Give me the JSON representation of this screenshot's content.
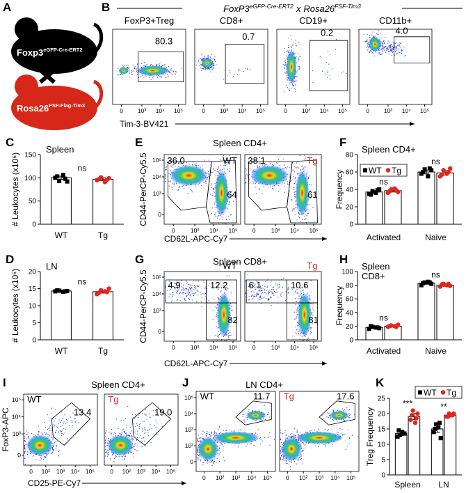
{
  "panel_a": {
    "label": "A",
    "mouse1": {
      "gene": "Foxp3",
      "allele": "eGFP-Cre-ERT2"
    },
    "mouse2": {
      "gene": "Rosa26",
      "allele": "FSF-Flag-Tim3"
    }
  },
  "panel_b": {
    "label": "B",
    "title": {
      "gene1": "FoxP3",
      "sup1": "eGFP-Cre-ERT2",
      "joiner": "x",
      "gene2": "Rosa26",
      "sup2": "FSF-Tim3"
    },
    "plots": [
      {
        "title": "FoxP3+Treg",
        "gate": "80.3"
      },
      {
        "title": "CD8+",
        "gate": "0.7"
      },
      {
        "title": "CD19+",
        "gate": "0.2"
      },
      {
        "title": "CD11b+",
        "gate": "4.0"
      }
    ],
    "xticks": [
      "0",
      "10³",
      "10⁴",
      "10⁵"
    ],
    "xlabel": "Tim-3-BV421"
  },
  "panel_e": {
    "label": "E",
    "title": "Spleen CD4+",
    "ylabel": "CD44-PerCP-Cy5.5",
    "xlabel": "CD62L-APC-Cy7",
    "yticks": [
      "10⁵",
      "10⁴",
      "10³",
      "0"
    ],
    "xticks": [
      "0",
      "10³",
      "10⁴",
      "10⁵"
    ],
    "plots": [
      {
        "group": "WT",
        "color": "#000000",
        "gates": [
          "36.0",
          "64"
        ]
      },
      {
        "group": "Tg",
        "color": "#d62718",
        "gates": [
          "38.1",
          "61"
        ]
      }
    ]
  },
  "panel_g": {
    "label": "G",
    "title": "Spleen CD8+",
    "ylabel": "CD44-PerCP-Cy5.5",
    "xlabel": "CD62L-APC-Cy7",
    "yticks": [
      "10⁵",
      "10⁴",
      "10³",
      "0"
    ],
    "xticks": [
      "0",
      "10³",
      "10⁴",
      "10⁵"
    ],
    "plots": [
      {
        "group": "WT",
        "color": "#000000",
        "gates": [
          "4.9",
          "12.2",
          "82"
        ]
      },
      {
        "group": "Tg",
        "color": "#d62718",
        "gates": [
          "6.1",
          "10.6",
          "81"
        ]
      }
    ]
  },
  "panel_i": {
    "label": "I",
    "title": "Spleen CD4+",
    "ylabel": "FoxP3-APC",
    "xlabel": "CD25-PE-Cy7",
    "yticks": [
      "10⁵",
      "10⁴",
      "10³",
      "0"
    ],
    "xticks": [
      "0",
      "10²",
      "10³",
      "10⁴",
      "10⁵"
    ],
    "plots": [
      {
        "group": "WT",
        "color": "#000000",
        "gates": [
          "13.4"
        ]
      },
      {
        "group": "Tg",
        "color": "#d62718",
        "gates": [
          "19.0"
        ]
      }
    ]
  },
  "panel_j": {
    "label": "J",
    "title": "LN CD4+",
    "yticks": [
      "10⁵",
      "10⁴",
      "10³",
      "10²",
      "0"
    ],
    "xticks": [
      "0",
      "10²",
      "10³",
      "10⁴",
      "10⁵"
    ],
    "plots": [
      {
        "group": "WT",
        "color": "#000000",
        "gates": [
          "11.7"
        ]
      },
      {
        "group": "Tg",
        "color": "#d62718",
        "gates": [
          "17.6"
        ]
      }
    ]
  },
  "chart_data": [
    {
      "type": "bar",
      "label": "C",
      "title": [
        "Spleen"
      ],
      "ylabel": "# Leukocytes (x10⁶)",
      "categories": [
        "WT",
        "Tg"
      ],
      "values": [
        100,
        97
      ],
      "errors": [
        3.5,
        3
      ],
      "points": [
        [
          100,
          93,
          106,
          92,
          103,
          98
        ],
        [
          95,
          101,
          91,
          99,
          97,
          96
        ]
      ],
      "markers": [
        "square",
        "circle"
      ],
      "marker_colors": [
        "#000000",
        "#e8231c"
      ],
      "annotation": "ns",
      "ylim": [
        0,
        150
      ],
      "yticks": [
        0,
        50,
        100,
        150
      ]
    },
    {
      "type": "bar",
      "label": "D",
      "title": [
        "LN"
      ],
      "ylabel": "# Leukocytes (x10⁶)",
      "categories": [
        "WT",
        "Tg"
      ],
      "values": [
        14.3,
        14.1
      ],
      "errors": [
        0.15,
        0.4
      ],
      "points": [
        [
          14.2,
          14.4,
          14.1,
          14.3,
          14.5,
          14.2
        ],
        [
          13.4,
          14.5,
          14.2,
          15.0,
          13.8,
          14.0
        ]
      ],
      "markers": [
        "square",
        "circle"
      ],
      "marker_colors": [
        "#000000",
        "#e8231c"
      ],
      "annotation": "ns",
      "ylim": [
        0,
        20
      ],
      "yticks": [
        0,
        5,
        10,
        15,
        20
      ]
    },
    {
      "type": "bar",
      "label": "F",
      "title": [
        "Spleen CD4+"
      ],
      "ylabel": "Frequency",
      "categories": [
        "Activated",
        "Naive"
      ],
      "series": [
        {
          "name": "WT",
          "color": "#000000",
          "marker": "square",
          "values": [
            37,
            60
          ],
          "errors": [
            1.5,
            2.2
          ],
          "points": [
            [
              35,
              38,
              36,
              40,
              34,
              39
            ],
            [
              58,
              63,
              55,
              62,
              60,
              64
            ]
          ]
        },
        {
          "name": "Tg",
          "color": "#e8231c",
          "marker": "circle",
          "values": [
            38.5,
            59
          ],
          "errors": [
            1.5,
            2.5
          ],
          "points": [
            [
              36,
              40,
              41,
              37,
              38,
              39
            ],
            [
              55,
              62,
              58,
              64,
              57,
              60
            ]
          ]
        }
      ],
      "annotations": [
        "ns",
        "ns"
      ],
      "legend": true,
      "ylim": [
        0,
        80
      ],
      "yticks": [
        0,
        20,
        40,
        60,
        80
      ]
    },
    {
      "type": "bar",
      "label": "H",
      "title": [
        "Spleen",
        "CD8+"
      ],
      "ylabel": "Frequency",
      "categories": [
        "Activated",
        "Naive"
      ],
      "series": [
        {
          "name": "WT",
          "color": "#000000",
          "marker": "square",
          "values": [
            18,
            83
          ],
          "errors": [
            1,
            1.5
          ],
          "points": [
            [
              16,
              19,
              18,
              17,
              20,
              18
            ],
            [
              80,
              84,
              85,
              82,
              83,
              84
            ]
          ]
        },
        {
          "name": "Tg",
          "color": "#e8231c",
          "marker": "circle",
          "values": [
            20,
            80
          ],
          "errors": [
            1,
            1.5
          ],
          "points": [
            [
              19,
              21,
              20,
              22,
              20,
              19
            ],
            [
              78,
              82,
              80,
              79,
              81,
              82
            ]
          ]
        }
      ],
      "annotations": [
        "ns",
        "ns"
      ],
      "legend": false,
      "ylim": [
        0,
        100
      ],
      "yticks": [
        0,
        20,
        40,
        60,
        80,
        100
      ]
    },
    {
      "type": "bar",
      "label": "K",
      "ylabel": "Treg Frequency",
      "categories": [
        "Spleen",
        "LN"
      ],
      "series": [
        {
          "name": "WT",
          "color": "#000000",
          "marker": "square",
          "values": [
            13.5,
            15
          ],
          "errors": [
            0.6,
            1.1
          ],
          "points": [
            [
              12.5,
              13,
              14,
              13.5,
              14.5,
              13.5
            ],
            [
              14,
              16.5,
              15.5,
              12,
              15,
              17
            ]
          ]
        },
        {
          "name": "Tg",
          "color": "#e8231c",
          "marker": "circle",
          "values": [
            19,
            19.5
          ],
          "errors": [
            1,
            0.4
          ],
          "points": [
            [
              18,
              21,
              17,
              20,
              19.5,
              18.5
            ],
            [
              19,
              20,
              19.5,
              20,
              19,
              19.5
            ]
          ]
        }
      ],
      "annotations": [
        "***",
        "**"
      ],
      "legend": true,
      "ylim": [
        0,
        25
      ],
      "yticks": [
        0,
        5,
        10,
        15,
        20,
        25
      ]
    }
  ]
}
